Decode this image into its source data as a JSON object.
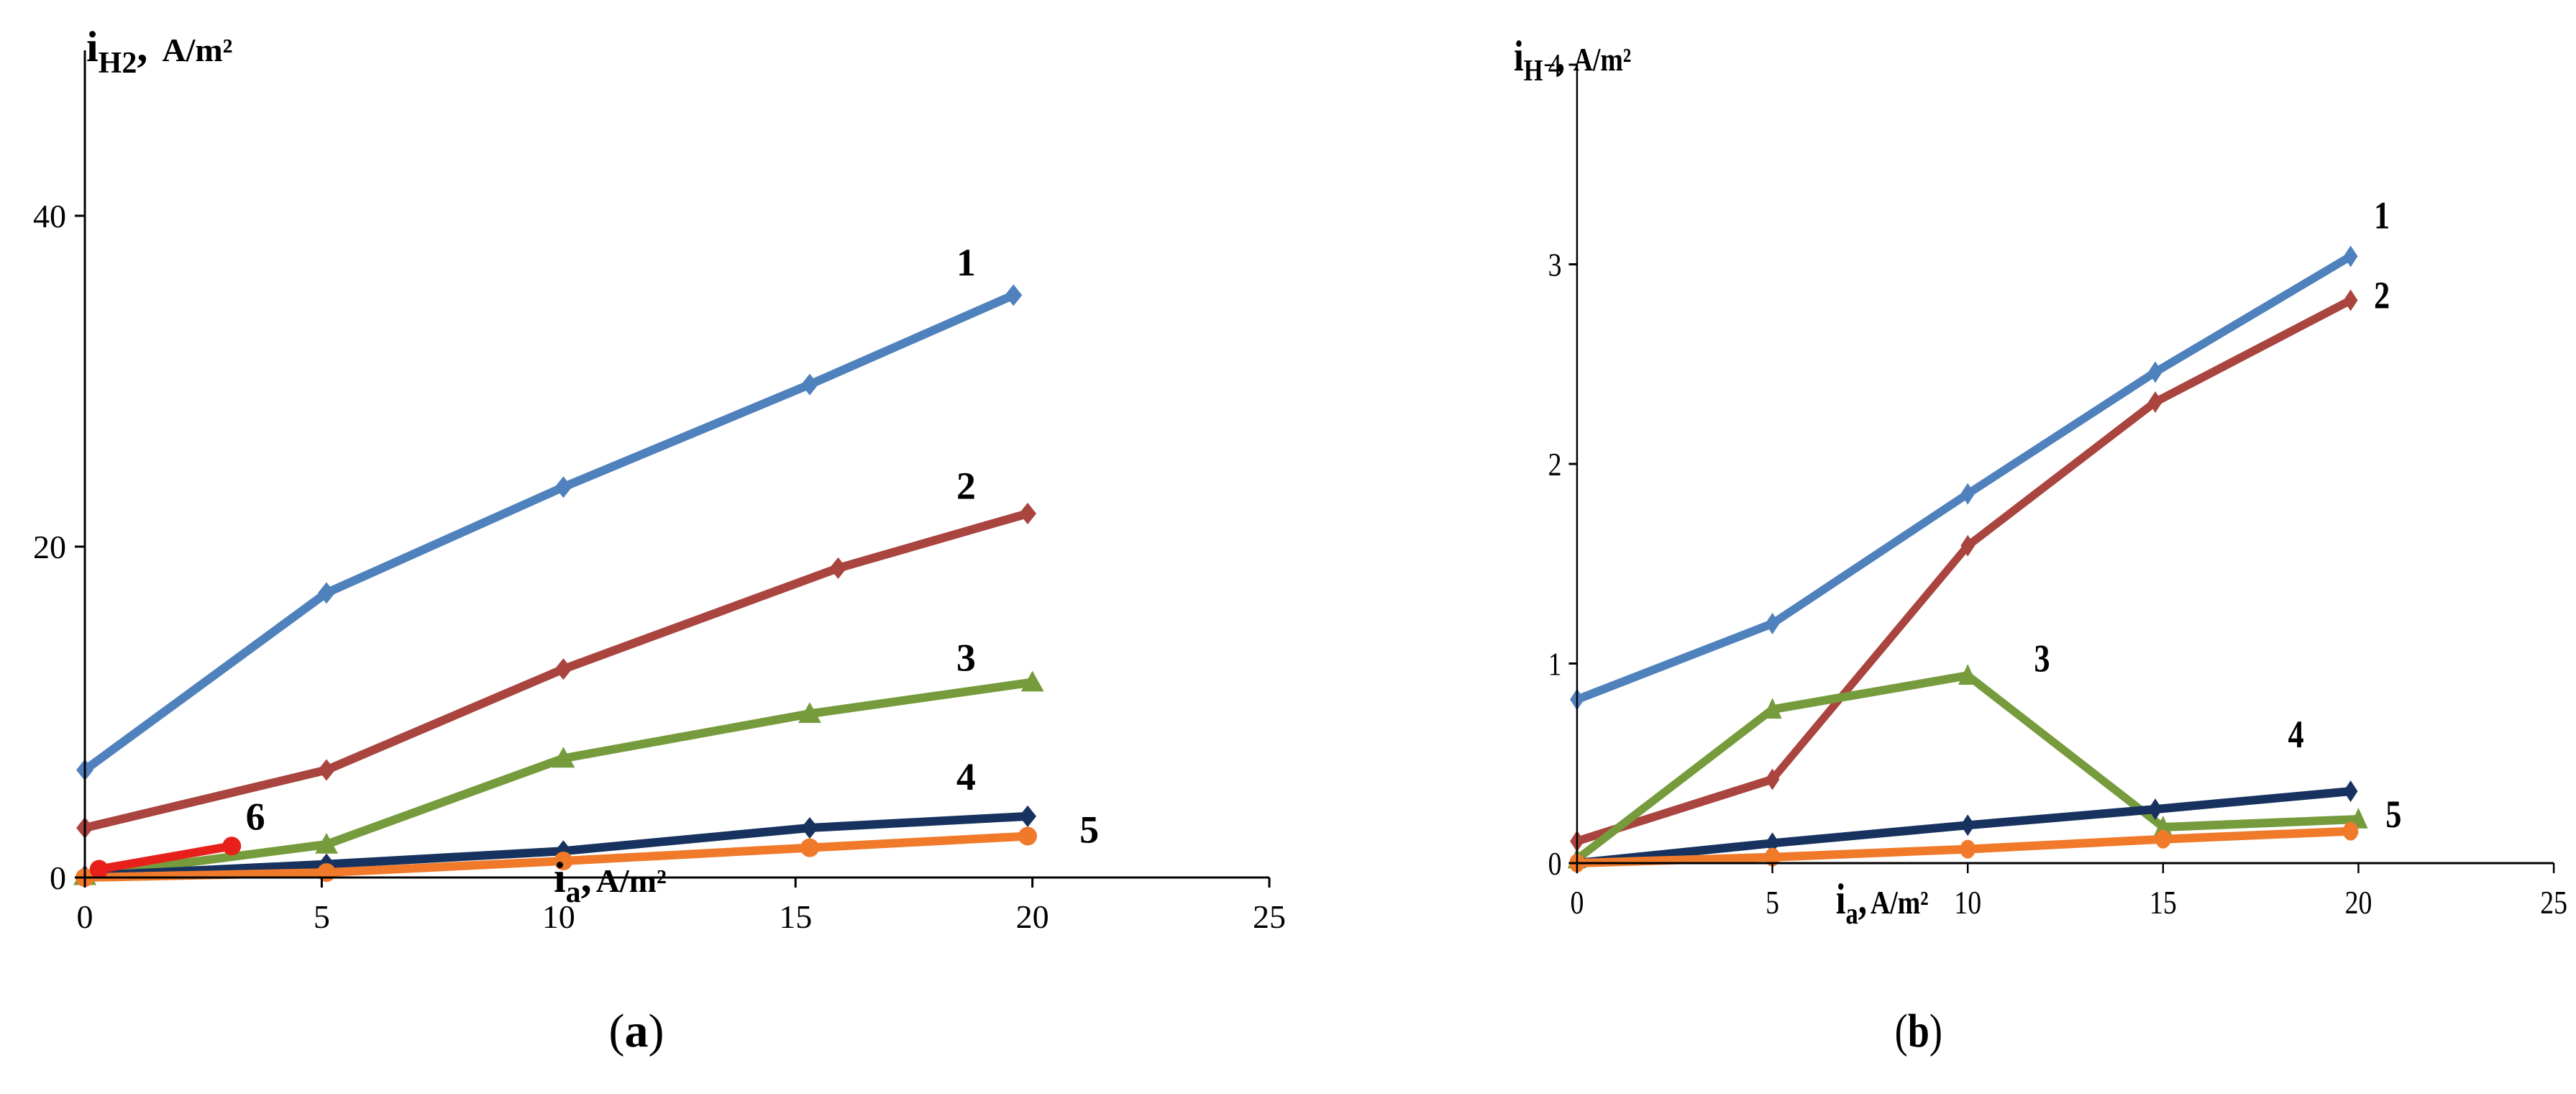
{
  "chart_data": [
    {
      "type": "line",
      "panel": "a",
      "panel_label": {
        "open": "(",
        "letter": "a",
        "close": ")"
      },
      "ylabel": {
        "main": "i",
        "sub": "H2",
        "sep": ",",
        "unit": "A/m²"
      },
      "xlabel": {
        "main": "i",
        "sub": "a",
        "sep": ",",
        "unit": "A/m²"
      },
      "xlim": [
        0,
        25
      ],
      "ylim": [
        0,
        50
      ],
      "x_ticks": [
        "0",
        "5",
        "10",
        "15",
        "20",
        "25"
      ],
      "y_ticks": [
        "0",
        "20",
        "40"
      ],
      "y_tick_values": [
        0,
        20,
        40
      ],
      "series": [
        {
          "name": "1",
          "color": "#4f81bd",
          "marker": "diamond",
          "points": [
            [
              0,
              6.5
            ],
            [
              5.1,
              17.2
            ],
            [
              10.1,
              23.6
            ],
            [
              15.3,
              29.8
            ],
            [
              19.6,
              35.2
            ]
          ]
        },
        {
          "name": "2",
          "color": "#a9443f",
          "marker": "diamond",
          "points": [
            [
              0,
              3.0
            ],
            [
              5.1,
              6.5
            ],
            [
              10.1,
              12.6
            ],
            [
              15.9,
              18.7
            ],
            [
              19.9,
              22.0
            ]
          ]
        },
        {
          "name": "3",
          "color": "#769b3c",
          "marker": "triangle",
          "points": [
            [
              0,
              0.1
            ],
            [
              5.1,
              2.0
            ],
            [
              10.1,
              7.2
            ],
            [
              15.3,
              9.9
            ],
            [
              20.0,
              11.8
            ]
          ]
        },
        {
          "name": "4",
          "color": "#17325e",
          "marker": "diamond",
          "points": [
            [
              0,
              0.1
            ],
            [
              5.1,
              0.8
            ],
            [
              10.1,
              1.6
            ],
            [
              15.3,
              3.0
            ],
            [
              19.9,
              3.7
            ]
          ]
        },
        {
          "name": "5",
          "color": "#f07a2a",
          "marker": "circle",
          "points": [
            [
              0,
              0.0
            ],
            [
              5.1,
              0.3
            ],
            [
              10.1,
              1.0
            ],
            [
              15.3,
              1.8
            ],
            [
              19.9,
              2.5
            ]
          ]
        },
        {
          "name": "6",
          "color": "#e8201c",
          "marker": "circle",
          "points": [
            [
              0.3,
              0.5
            ],
            [
              3.1,
              1.9
            ]
          ]
        }
      ],
      "labels": [
        {
          "text": "1",
          "x": 18.6,
          "y": 36.4
        },
        {
          "text": "2",
          "x": 18.6,
          "y": 22.9
        },
        {
          "text": "3",
          "x": 18.6,
          "y": 12.5
        },
        {
          "text": "4",
          "x": 18.6,
          "y": 5.3
        },
        {
          "text": "5",
          "x": 21.2,
          "y": 2.1
        },
        {
          "text": "6",
          "x": 3.6,
          "y": 2.9
        }
      ]
    },
    {
      "type": "line",
      "panel": "b",
      "panel_label": {
        "open": "(",
        "letter": "b",
        "close": ")"
      },
      "ylabel": {
        "main": "i",
        "sub": "H⁻",
        "sep": ",",
        "unit": "A/m²"
      },
      "xlabel": {
        "main": "i",
        "sub": "a",
        "sep": ",",
        "unit": "A/m²"
      },
      "xlim": [
        0,
        25
      ],
      "ylim": [
        0,
        4
      ],
      "x_ticks": [
        "0",
        "5",
        "10",
        "15",
        "20",
        "25"
      ],
      "y_ticks": [
        "0",
        "1",
        "2",
        "3",
        "4"
      ],
      "y_tick_values": [
        0,
        1,
        2,
        3,
        4
      ],
      "series": [
        {
          "name": "1",
          "color": "#4f81bd",
          "marker": "diamond",
          "points": [
            [
              0,
              0.82
            ],
            [
              5.0,
              1.2
            ],
            [
              10.0,
              1.85
            ],
            [
              14.8,
              2.46
            ],
            [
              19.8,
              3.04
            ]
          ]
        },
        {
          "name": "2",
          "color": "#a9443f",
          "marker": "diamond",
          "points": [
            [
              0,
              0.11
            ],
            [
              5.0,
              0.42
            ],
            [
              10.0,
              1.59
            ],
            [
              14.8,
              2.31
            ],
            [
              19.8,
              2.82
            ]
          ]
        },
        {
          "name": "3",
          "color": "#769b3c",
          "marker": "triangle",
          "points": [
            [
              0,
              0.02
            ],
            [
              5.0,
              0.77
            ],
            [
              10.0,
              0.94
            ],
            [
              15.0,
              0.18
            ],
            [
              20.0,
              0.22
            ]
          ]
        },
        {
          "name": "4",
          "color": "#17325e",
          "marker": "diamond",
          "points": [
            [
              0,
              0.0
            ],
            [
              5.0,
              0.1
            ],
            [
              10.0,
              0.19
            ],
            [
              14.8,
              0.27
            ],
            [
              19.8,
              0.36
            ]
          ]
        },
        {
          "name": "5",
          "color": "#f07a2a",
          "marker": "circle",
          "points": [
            [
              0,
              0.0
            ],
            [
              5.0,
              0.03
            ],
            [
              10.0,
              0.07
            ],
            [
              15.0,
              0.12
            ],
            [
              19.8,
              0.16
            ]
          ]
        }
      ],
      "labels": [
        {
          "text": "1",
          "x": 20.6,
          "y": 3.18
        },
        {
          "text": "2",
          "x": 20.6,
          "y": 2.78
        },
        {
          "text": "3",
          "x": 11.9,
          "y": 0.96
        },
        {
          "text": "4",
          "x": 18.4,
          "y": 0.58
        },
        {
          "text": "5",
          "x": 20.9,
          "y": 0.18
        }
      ]
    }
  ]
}
